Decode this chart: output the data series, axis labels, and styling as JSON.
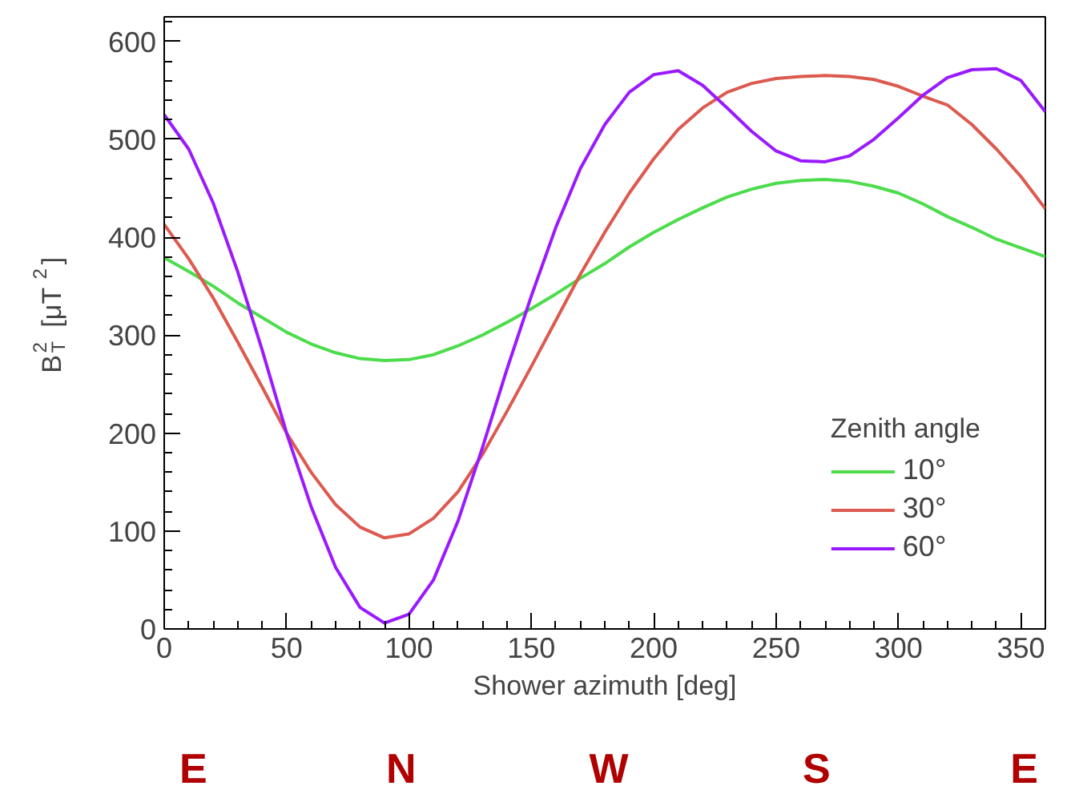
{
  "chart_data": {
    "type": "line",
    "xlabel": "Shower azimuth [deg]",
    "ylabel": "B$_{T}$$^{2}$ [μT$^{2}$]",
    "legend_title": "Zenith angle",
    "x": [
      0,
      10,
      20,
      30,
      40,
      50,
      60,
      70,
      80,
      90,
      100,
      110,
      120,
      130,
      140,
      150,
      160,
      170,
      180,
      190,
      200,
      210,
      220,
      230,
      240,
      250,
      260,
      270,
      280,
      290,
      300,
      310,
      320,
      330,
      340,
      350,
      360
    ],
    "series": [
      {
        "name": "10°",
        "color": "#4cdc4c",
        "values": [
          379,
          365,
          350,
          333,
          318,
          303,
          291,
          282,
          276,
          274,
          275,
          280,
          289,
          300,
          313,
          327,
          342,
          358,
          373,
          390,
          405,
          418,
          430,
          441,
          449,
          455,
          458,
          459,
          457,
          452,
          445,
          434,
          421,
          410,
          398,
          389,
          380
        ]
      },
      {
        "name": "30°",
        "color": "#dc5a50",
        "values": [
          413,
          378,
          338,
          293,
          247,
          200,
          160,
          127,
          104,
          93,
          97,
          113,
          140,
          178,
          222,
          268,
          315,
          362,
          405,
          445,
          480,
          510,
          532,
          548,
          557,
          562,
          564,
          565,
          564,
          561,
          554,
          544,
          535,
          515,
          490,
          462,
          429
        ]
      },
      {
        "name": "60°",
        "color": "#9a1aff",
        "values": [
          525,
          490,
          435,
          365,
          285,
          200,
          125,
          63,
          22,
          6,
          15,
          50,
          110,
          185,
          265,
          340,
          410,
          470,
          515,
          548,
          566,
          570,
          555,
          532,
          508,
          488,
          478,
          477,
          483,
          500,
          522,
          545,
          563,
          571,
          572,
          560,
          528
        ]
      }
    ],
    "xlim": [
      0,
      360
    ],
    "ylim": [
      0,
      625
    ],
    "xticks": [
      0,
      50,
      100,
      150,
      200,
      250,
      300,
      350
    ],
    "yticks": [
      0,
      100,
      200,
      300,
      400,
      500,
      600
    ],
    "annotations": [
      "E",
      "N",
      "W",
      "S",
      "E"
    ],
    "grid": false,
    "legend": "bottom right",
    "marker": "none",
    "line_style": "solid"
  }
}
